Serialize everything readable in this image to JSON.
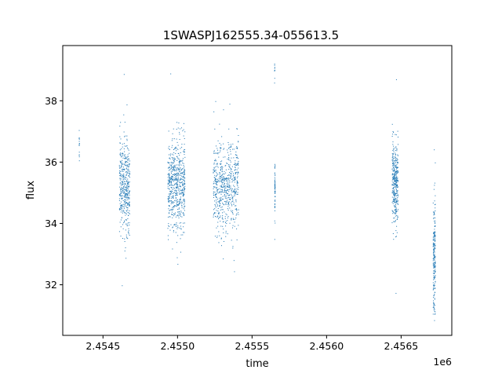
{
  "chart_data": {
    "type": "scatter",
    "title": "1SWASPJ162555.34-055613.5",
    "xlabel": "time",
    "ylabel": "flux",
    "x_offset_label": "1e6",
    "xlim": [
      2454230,
      2456840
    ],
    "ylim": [
      30.35,
      39.8
    ],
    "x_ticks": [
      2454500,
      2455000,
      2455500,
      2456000,
      2456500
    ],
    "x_tick_labels": [
      "2.4545",
      "2.4550",
      "2.4555",
      "2.4560",
      "2.4565"
    ],
    "y_ticks": [
      32,
      34,
      36,
      38
    ],
    "y_tick_labels": [
      "32",
      "34",
      "36",
      "38"
    ],
    "grid": false,
    "point_color": "#1f77b4",
    "clusters": [
      {
        "x_start": 2454340,
        "x_end": 2454342,
        "y_mean": 36.6,
        "y_sd": 0.35,
        "n": 14
      },
      {
        "x_start": 2454610,
        "x_end": 2454680,
        "y_mean": 35.2,
        "y_sd": 0.7,
        "n": 420
      },
      {
        "x_start": 2454935,
        "x_end": 2455050,
        "y_mean": 35.2,
        "y_sd": 0.75,
        "n": 620
      },
      {
        "x_start": 2455240,
        "x_end": 2455410,
        "y_mean": 35.2,
        "y_sd": 0.75,
        "n": 620
      },
      {
        "x_start": 2455652,
        "x_end": 2455655,
        "y_mean": 35.1,
        "y_sd": 0.3,
        "n": 60
      },
      {
        "x_start": 2455651,
        "x_end": 2455653,
        "y_mean": 38.9,
        "y_sd": 0.25,
        "n": 10
      },
      {
        "x_start": 2456440,
        "x_end": 2456480,
        "y_mean": 35.3,
        "y_sd": 0.65,
        "n": 360
      },
      {
        "x_start": 2456715,
        "x_end": 2456730,
        "y_mean": 33.0,
        "y_sd": 0.9,
        "n": 220
      }
    ]
  }
}
